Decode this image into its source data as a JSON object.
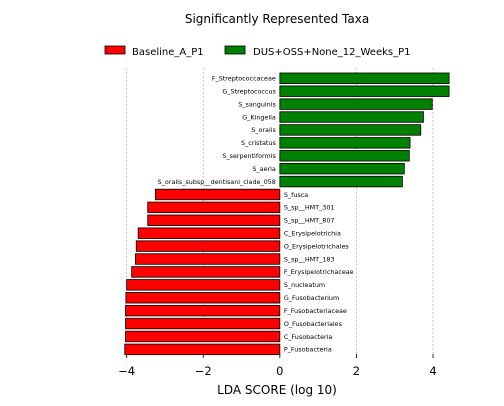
{
  "chart_data": {
    "type": "bar",
    "orientation": "horizontal",
    "title": "Significantly Represented Taxa",
    "xlabel": "LDA SCORE (log 10)",
    "ylabel": "",
    "xlim": [
      -4.2,
      4.6
    ],
    "xticks": [
      -4,
      -2,
      0,
      2,
      4
    ],
    "xtick_labels": [
      "−4",
      "−2",
      "0",
      "2",
      "4"
    ],
    "grid": "vertical-dashed",
    "legend_position": "top",
    "series": [
      {
        "name": "Baseline_A_P1",
        "color": "#ff0000",
        "categories": [
          "S_fusca",
          "S_sp__HMT_301",
          "S_sp__HMT_807",
          "C_Erysipelotrichia",
          "O_Erysipelotrichales",
          "S_sp__HMT_183",
          "F_Erysipelotrichaceae",
          "S_nucleatum",
          "G_Fusobacterium",
          "F_Fusobacteriaceae",
          "O_Fusobacteriales",
          "C_Fusobacteria",
          "P_Fusobacteria"
        ],
        "values": [
          -3.25,
          -3.45,
          -3.45,
          -3.7,
          -3.75,
          -3.77,
          -3.87,
          -4.0,
          -4.02,
          -4.03,
          -4.03,
          -4.03,
          -4.05
        ]
      },
      {
        "name": "DUS+OSS+None_12_Weeks_P1",
        "color": "#008000",
        "categories": [
          "F_Streptococcaceae",
          "G_Streptococcus",
          "S_sanguinis",
          "G_Kingella",
          "S_oralis",
          "S_cristatus",
          "S_serpentiformis",
          "S_aeria",
          "S_oralis_subsp__dentisani_clade_058"
        ],
        "values": [
          4.42,
          4.42,
          3.98,
          3.75,
          3.68,
          3.4,
          3.38,
          3.25,
          3.2
        ]
      }
    ]
  }
}
